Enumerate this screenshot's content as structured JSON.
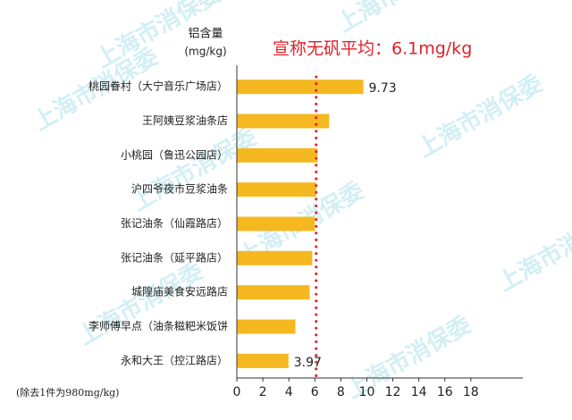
{
  "chart_data": {
    "type": "bar",
    "orientation": "horizontal",
    "y_label_line1": "铝含量",
    "y_label_line2": "(mg/kg)",
    "annotation": "宣称无矾平均：6.1mg/kg",
    "reference_value": 6.1,
    "footnote": "(除去1件为980mg/kg)",
    "watermark": "上海市消保委",
    "categories": [
      "桃园眷村（大宁音乐广场店）",
      "王阿姨豆浆油条店",
      "小桃园（鲁迅公园店）",
      "沪四爷夜市豆浆油条",
      "张记油条（仙霞路店）",
      "张记油条（延平路店）",
      "城隍庙美食安远路店",
      "李师傅早点（油条糍粑米饭饼",
      "永和大王（控江路店）"
    ],
    "values": [
      9.73,
      7.1,
      6.2,
      6.1,
      6.0,
      5.8,
      5.6,
      4.5,
      3.97
    ],
    "value_labels": [
      "9.73",
      null,
      null,
      null,
      null,
      null,
      null,
      null,
      "3.97"
    ],
    "color": "#f5b820",
    "reference_color": "#e0202a",
    "xlim": [
      0,
      22
    ],
    "xticks": [
      0,
      2,
      4,
      6,
      8,
      10,
      12,
      14,
      16,
      18
    ]
  }
}
